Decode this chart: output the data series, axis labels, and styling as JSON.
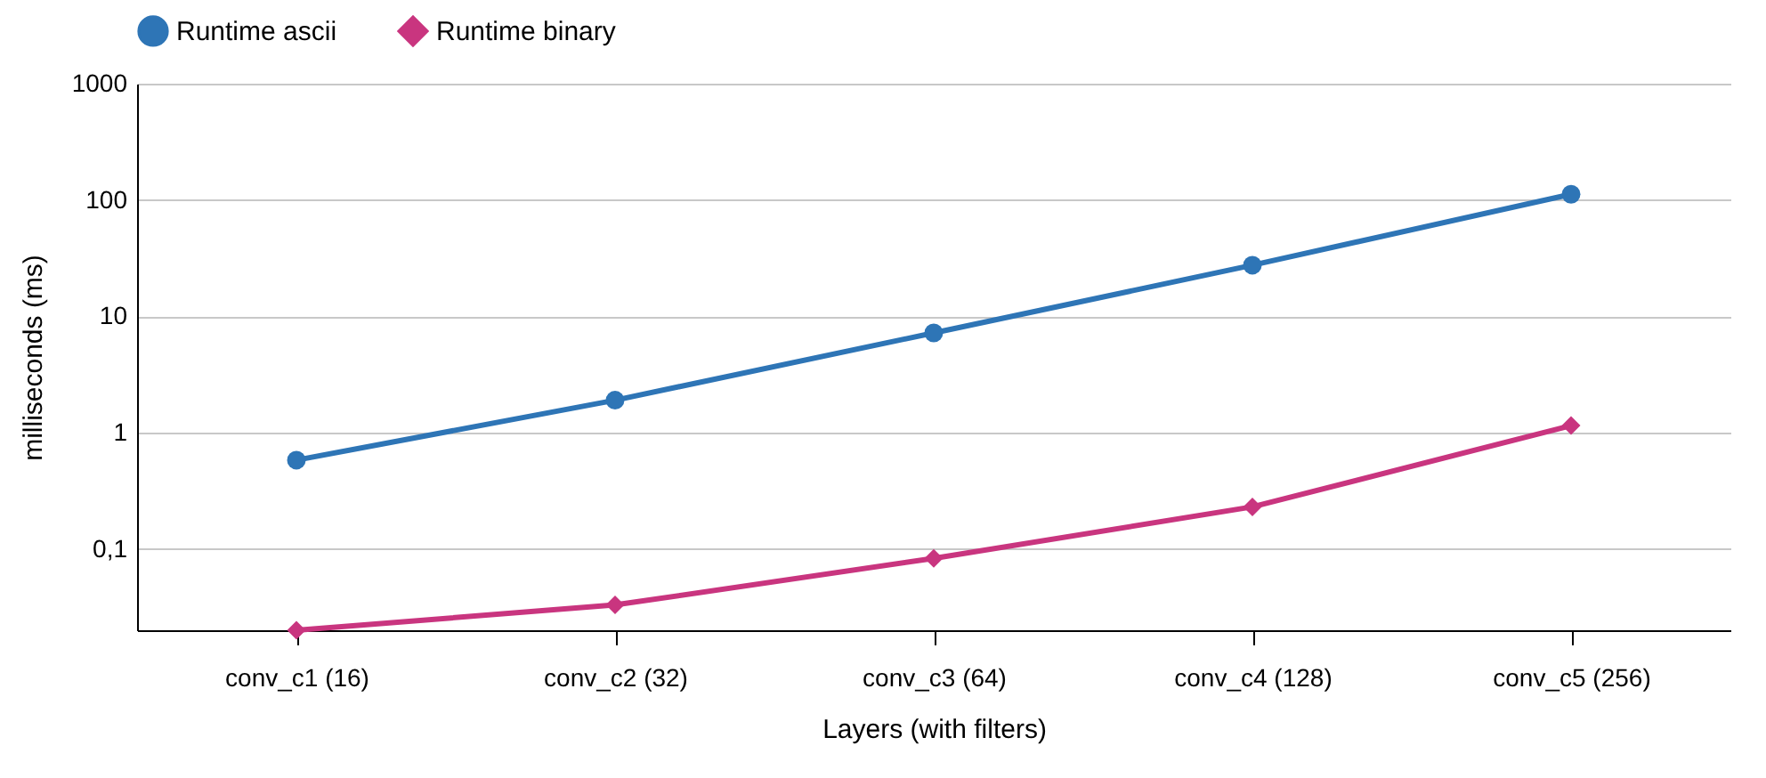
{
  "chart_data": {
    "type": "line",
    "xlabel": "Layers (with filters)",
    "ylabel": "milliseconds (ms)",
    "categories": [
      "conv_c1 (16)",
      "conv_c2 (32)",
      "conv_c3 (64)",
      "conv_c4 (128)",
      "conv_c5 (256)"
    ],
    "series": [
      {
        "name": "Runtime ascii",
        "color": "#2e75b6",
        "marker": "circle",
        "values": [
          0.58,
          1.9,
          7.2,
          27.5,
          112
        ]
      },
      {
        "name": "Runtime binary",
        "color": "#c9357f",
        "marker": "diamond",
        "values": [
          0.02,
          0.033,
          0.083,
          0.23,
          1.15
        ]
      }
    ],
    "log": true,
    "ylim": [
      0.02,
      1000
    ],
    "yticks": [
      {
        "value": 0.1,
        "label": "0,1"
      },
      1,
      10,
      100,
      1000
    ],
    "grid": "y",
    "legend": "top",
    "line_style": "solid"
  }
}
